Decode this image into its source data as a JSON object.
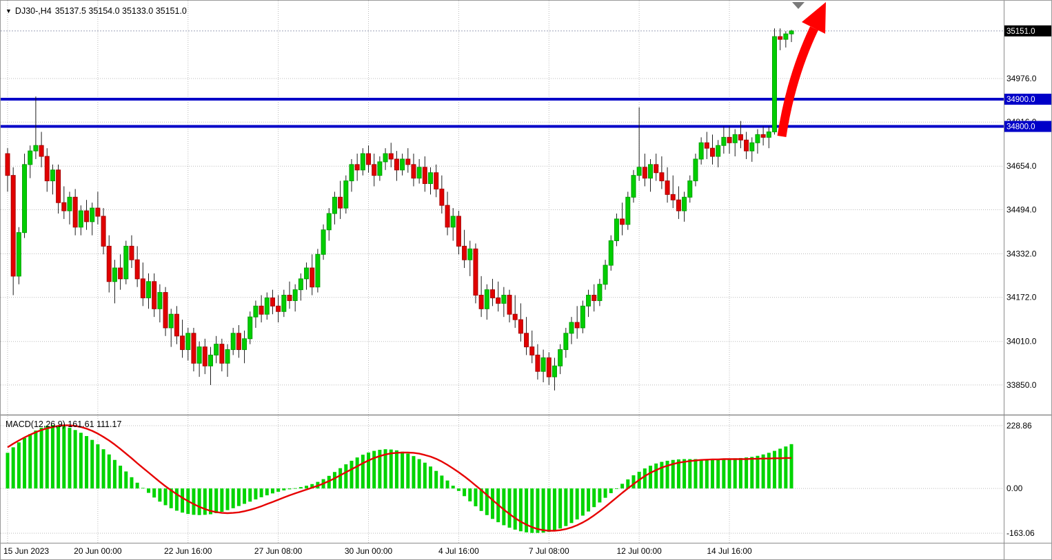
{
  "header": {
    "dropdown_icon": "▼",
    "symbol": "DJ30-,H4",
    "ohlc": "35137.5 35154.0 35133.0 35151.0"
  },
  "macd": {
    "label": "MACD(12,26,9) 161.61 111.17"
  },
  "colors": {
    "bull": "#00CE00",
    "bull_border": "#00A000",
    "bear": "#E10000",
    "bear_border": "#A80000",
    "wick": "#1c1c1c",
    "grid": "#b9b9b9",
    "level_blue": "#0000C8",
    "signal_red": "#E60000",
    "histogram": "#00D400",
    "arrow_red": "#FF0000",
    "current_badge_bg": "#000000",
    "marker_gray": "#7a7a7a",
    "separator": "#8a8a8a"
  },
  "chart_data": [
    {
      "type": "candlestick",
      "symbol": "DJ30-",
      "timeframe": "H4",
      "display_ohlc": {
        "open": 35137.5,
        "high": 35154.0,
        "low": 35133.0,
        "close": 35151.0
      },
      "current_price": {
        "value": 35151.0,
        "label": "35151.0"
      },
      "horizontal_levels": [
        {
          "value": 34900.0,
          "label": "34900.0"
        },
        {
          "value": 34800.0,
          "label": "34800.0"
        }
      ],
      "y_ticks": [
        {
          "value": 34976.0,
          "label": "34976.0"
        },
        {
          "value": 34816.0,
          "label": "34816.0"
        },
        {
          "value": 34654.0,
          "label": "34654.0"
        },
        {
          "value": 34494.0,
          "label": "34494.0"
        },
        {
          "value": 34332.0,
          "label": "34332.0"
        },
        {
          "value": 34172.0,
          "label": "34172.0"
        },
        {
          "value": 34010.0,
          "label": "34010.0"
        },
        {
          "value": 33850.0,
          "label": "33850.0"
        }
      ],
      "x_labels": [
        {
          "index": 0,
          "label": "15 Jun 2023"
        },
        {
          "index": 16,
          "label": "20 Jun 00:00"
        },
        {
          "index": 32,
          "label": "22 Jun 16:00"
        },
        {
          "index": 48,
          "label": "27 Jun 08:00"
        },
        {
          "index": 64,
          "label": "30 Jun 00:00"
        },
        {
          "index": 80,
          "label": "4 Jul 16:00"
        },
        {
          "index": 96,
          "label": "7 Jul 08:00"
        },
        {
          "index": 112,
          "label": "12 Jul 00:00"
        },
        {
          "index": 128,
          "label": "14 Jul 16:00"
        }
      ],
      "y_range": [
        33741,
        35262
      ],
      "annotations": {
        "arrow": "thick red up arrow projecting breakout above 34800/34900 levels"
      },
      "candles": [
        [
          34700,
          34720,
          34560,
          34620
        ],
        [
          34620,
          34650,
          34180,
          34250
        ],
        [
          34250,
          34430,
          34220,
          34410
        ],
        [
          34410,
          34700,
          34390,
          34660
        ],
        [
          34660,
          34730,
          34610,
          34710
        ],
        [
          34710,
          34910,
          34680,
          34730
        ],
        [
          34730,
          34780,
          34650,
          34690
        ],
        [
          34690,
          34720,
          34560,
          34600
        ],
        [
          34600,
          34660,
          34550,
          34640
        ],
        [
          34640,
          34660,
          34480,
          34520
        ],
        [
          34520,
          34580,
          34460,
          34490
        ],
        [
          34490,
          34560,
          34440,
          34540
        ],
        [
          34540,
          34570,
          34400,
          34430
        ],
        [
          34430,
          34510,
          34400,
          34490
        ],
        [
          34490,
          34530,
          34420,
          34450
        ],
        [
          34450,
          34520,
          34400,
          34500
        ],
        [
          34500,
          34560,
          34440,
          34470
        ],
        [
          34470,
          34500,
          34330,
          34360
        ],
        [
          34360,
          34400,
          34190,
          34230
        ],
        [
          34230,
          34310,
          34150,
          34280
        ],
        [
          34280,
          34330,
          34200,
          34240
        ],
        [
          34240,
          34380,
          34220,
          34360
        ],
        [
          34360,
          34400,
          34280,
          34310
        ],
        [
          34310,
          34360,
          34210,
          34240
        ],
        [
          34240,
          34300,
          34140,
          34170
        ],
        [
          34170,
          34260,
          34130,
          34230
        ],
        [
          34230,
          34260,
          34100,
          34130
        ],
        [
          34130,
          34220,
          34080,
          34190
        ],
        [
          34190,
          34210,
          34030,
          34060
        ],
        [
          34060,
          34130,
          33990,
          34110
        ],
        [
          34110,
          34140,
          34000,
          34030
        ],
        [
          34030,
          34090,
          33950,
          33980
        ],
        [
          33980,
          34060,
          33940,
          34040
        ],
        [
          34040,
          34060,
          33900,
          33930
        ],
        [
          33930,
          34010,
          33880,
          33990
        ],
        [
          33990,
          34020,
          33890,
          33920
        ],
        [
          33920,
          33990,
          33850,
          33960
        ],
        [
          33960,
          34030,
          33930,
          34000
        ],
        [
          34000,
          34020,
          33900,
          33930
        ],
        [
          33930,
          34000,
          33880,
          33980
        ],
        [
          33980,
          34060,
          33960,
          34040
        ],
        [
          34040,
          34070,
          33950,
          33980
        ],
        [
          33980,
          34050,
          33930,
          34020
        ],
        [
          34020,
          34120,
          34000,
          34100
        ],
        [
          34100,
          34160,
          34060,
          34140
        ],
        [
          34140,
          34180,
          34080,
          34110
        ],
        [
          34110,
          34190,
          34090,
          34170
        ],
        [
          34170,
          34200,
          34110,
          34140
        ],
        [
          34140,
          34180,
          34080,
          34120
        ],
        [
          34120,
          34200,
          34100,
          34180
        ],
        [
          34180,
          34230,
          34130,
          34160
        ],
        [
          34160,
          34220,
          34120,
          34200
        ],
        [
          34200,
          34260,
          34160,
          34240
        ],
        [
          34240,
          34300,
          34200,
          34280
        ],
        [
          34280,
          34330,
          34180,
          34210
        ],
        [
          34210,
          34350,
          34190,
          34330
        ],
        [
          34330,
          34440,
          34310,
          34420
        ],
        [
          34420,
          34500,
          34380,
          34480
        ],
        [
          34480,
          34560,
          34440,
          34540
        ],
        [
          34540,
          34600,
          34460,
          34500
        ],
        [
          34500,
          34620,
          34480,
          34600
        ],
        [
          34600,
          34680,
          34560,
          34660
        ],
        [
          34660,
          34700,
          34600,
          34640
        ],
        [
          34640,
          34720,
          34620,
          34700
        ],
        [
          34700,
          34730,
          34630,
          34660
        ],
        [
          34660,
          34700,
          34580,
          34620
        ],
        [
          34620,
          34690,
          34600,
          34670
        ],
        [
          34670,
          34720,
          34640,
          34700
        ],
        [
          34700,
          34740,
          34650,
          34680
        ],
        [
          34680,
          34710,
          34600,
          34640
        ],
        [
          34640,
          34700,
          34620,
          34680
        ],
        [
          34680,
          34720,
          34630,
          34660
        ],
        [
          34660,
          34700,
          34580,
          34610
        ],
        [
          34610,
          34680,
          34590,
          34650
        ],
        [
          34650,
          34690,
          34560,
          34590
        ],
        [
          34590,
          34650,
          34550,
          34630
        ],
        [
          34630,
          34660,
          34540,
          34570
        ],
        [
          34570,
          34620,
          34480,
          34510
        ],
        [
          34510,
          34560,
          34400,
          34430
        ],
        [
          34430,
          34500,
          34380,
          34470
        ],
        [
          34470,
          34490,
          34330,
          34360
        ],
        [
          34360,
          34420,
          34280,
          34310
        ],
        [
          34310,
          34380,
          34250,
          34350
        ],
        [
          34350,
          34370,
          34150,
          34180
        ],
        [
          34180,
          34250,
          34100,
          34130
        ],
        [
          34130,
          34220,
          34090,
          34200
        ],
        [
          34200,
          34240,
          34140,
          34170
        ],
        [
          34170,
          34230,
          34120,
          34150
        ],
        [
          34150,
          34210,
          34100,
          34180
        ],
        [
          34180,
          34200,
          34080,
          34110
        ],
        [
          34110,
          34180,
          34060,
          34090
        ],
        [
          34090,
          34150,
          34010,
          34040
        ],
        [
          34040,
          34100,
          33960,
          33990
        ],
        [
          33990,
          34050,
          33930,
          33960
        ],
        [
          33960,
          34000,
          33870,
          33900
        ],
        [
          33900,
          33980,
          33860,
          33950
        ],
        [
          33950,
          33970,
          33850,
          33880
        ],
        [
          33880,
          33950,
          33830,
          33920
        ],
        [
          33920,
          34000,
          33890,
          33980
        ],
        [
          33980,
          34060,
          33950,
          34040
        ],
        [
          34040,
          34100,
          34000,
          34080
        ],
        [
          34080,
          34140,
          34020,
          34060
        ],
        [
          34060,
          34160,
          34040,
          34140
        ],
        [
          34140,
          34200,
          34100,
          34180
        ],
        [
          34180,
          34220,
          34120,
          34160
        ],
        [
          34160,
          34240,
          34140,
          34220
        ],
        [
          34220,
          34310,
          34200,
          34290
        ],
        [
          34290,
          34400,
          34270,
          34380
        ],
        [
          34380,
          34480,
          34360,
          34460
        ],
        [
          34460,
          34520,
          34400,
          34440
        ],
        [
          34440,
          34560,
          34420,
          34540
        ],
        [
          34540,
          34640,
          34520,
          34620
        ],
        [
          34620,
          34870,
          34600,
          34650
        ],
        [
          34650,
          34700,
          34580,
          34610
        ],
        [
          34610,
          34680,
          34560,
          34660
        ],
        [
          34660,
          34700,
          34600,
          34630
        ],
        [
          34630,
          34690,
          34570,
          34600
        ],
        [
          34600,
          34650,
          34520,
          34550
        ],
        [
          34550,
          34620,
          34500,
          34530
        ],
        [
          34530,
          34580,
          34460,
          34490
        ],
        [
          34490,
          34560,
          34450,
          34540
        ],
        [
          34540,
          34620,
          34520,
          34600
        ],
        [
          34600,
          34700,
          34580,
          34680
        ],
        [
          34680,
          34760,
          34660,
          34740
        ],
        [
          34740,
          34780,
          34680,
          34720
        ],
        [
          34720,
          34770,
          34660,
          34690
        ],
        [
          34690,
          34750,
          34650,
          34730
        ],
        [
          34730,
          34800,
          34700,
          34760
        ],
        [
          34760,
          34800,
          34700,
          34740
        ],
        [
          34740,
          34790,
          34690,
          34770
        ],
        [
          34770,
          34820,
          34720,
          34750
        ],
        [
          34750,
          34780,
          34680,
          34710
        ],
        [
          34710,
          34760,
          34670,
          34740
        ],
        [
          34740,
          34790,
          34700,
          34770
        ],
        [
          34770,
          34800,
          34730,
          34760
        ],
        [
          34760,
          34800,
          34720,
          34780
        ],
        [
          34780,
          35160,
          34770,
          35130
        ],
        [
          35130,
          35160,
          35080,
          35120
        ],
        [
          35120,
          35150,
          35090,
          35140
        ],
        [
          35140,
          35155,
          35110,
          35151
        ]
      ]
    },
    {
      "type": "bar+line",
      "name": "MACD(12,26,9)",
      "macd_value": 161.61,
      "signal_value": 111.17,
      "y_ticks": [
        {
          "value": 228.86,
          "label": "228.86"
        },
        {
          "value": 0,
          "label": "0.00"
        },
        {
          "value": -163.06,
          "label": "-163.06"
        }
      ],
      "y_range": [
        -198,
        259
      ],
      "histogram": [
        130,
        150,
        168,
        184,
        198,
        211,
        221,
        228,
        231,
        230,
        227,
        221,
        213,
        203,
        191,
        177,
        161,
        143,
        124,
        104,
        83,
        62,
        41,
        21,
        2,
        -16,
        -33,
        -48,
        -61,
        -72,
        -81,
        -88,
        -93,
        -96,
        -97,
        -96,
        -94,
        -90,
        -85,
        -79,
        -72,
        -64,
        -56,
        -48,
        -40,
        -32,
        -25,
        -18,
        -12,
        -7,
        -3,
        1,
        5,
        10,
        16,
        24,
        34,
        46,
        60,
        74,
        88,
        101,
        113,
        123,
        131,
        137,
        141,
        143,
        142,
        139,
        134,
        127,
        118,
        107,
        94,
        80,
        64,
        47,
        29,
        10,
        -9,
        -28,
        -47,
        -65,
        -82,
        -97,
        -111,
        -123,
        -134,
        -143,
        -150,
        -156,
        -160,
        -162,
        -162,
        -161,
        -158,
        -153,
        -146,
        -137,
        -126,
        -113,
        -99,
        -84,
        -68,
        -51,
        -34,
        -17,
        0,
        17,
        33,
        48,
        61,
        73,
        83,
        91,
        97,
        101,
        104,
        106,
        107,
        107,
        107,
        106,
        106,
        106,
        107,
        108,
        109,
        110,
        111,
        113,
        115,
        119,
        124,
        130,
        137,
        145,
        153,
        161.61
      ],
      "signal": [
        150,
        163,
        175,
        186,
        196,
        205,
        213,
        219,
        224,
        228,
        230,
        230,
        228,
        224,
        218,
        210,
        200,
        188,
        175,
        160,
        144,
        127,
        110,
        92,
        75,
        58,
        41,
        24,
        8,
        -7,
        -21,
        -34,
        -46,
        -57,
        -67,
        -75,
        -82,
        -86,
        -89,
        -90,
        -89,
        -87,
        -83,
        -78,
        -72,
        -65,
        -57,
        -49,
        -41,
        -33,
        -25,
        -18,
        -11,
        -4,
        3,
        10,
        18,
        27,
        37,
        48,
        59,
        70,
        81,
        92,
        102,
        111,
        118,
        124,
        128,
        130,
        131,
        131,
        130,
        127,
        122,
        116,
        108,
        98,
        86,
        73,
        59,
        44,
        28,
        11,
        -6,
        -24,
        -42,
        -60,
        -77,
        -93,
        -108,
        -121,
        -132,
        -141,
        -148,
        -152,
        -154,
        -154,
        -152,
        -148,
        -142,
        -134,
        -124,
        -112,
        -98,
        -83,
        -67,
        -50,
        -33,
        -16,
        0,
        16,
        31,
        45,
        57,
        67,
        76,
        83,
        89,
        94,
        97,
        100,
        102,
        104,
        105,
        106,
        106,
        107,
        107,
        107,
        107,
        107,
        108,
        108,
        109,
        109,
        110,
        110,
        111,
        111.17
      ]
    }
  ]
}
